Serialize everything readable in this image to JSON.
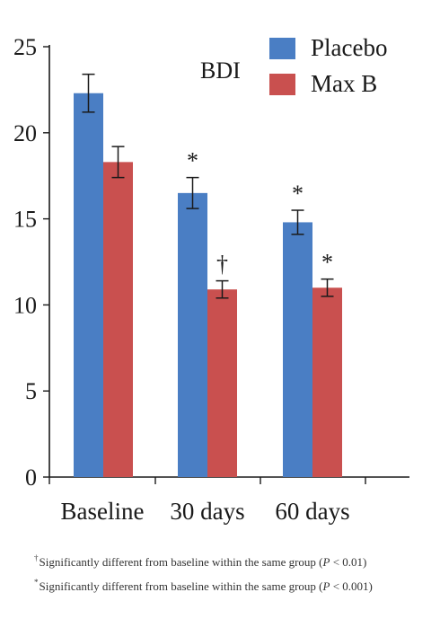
{
  "chart_data": {
    "type": "bar",
    "title": "BDI",
    "categories": [
      "Baseline",
      "30 days",
      "60 days"
    ],
    "series": [
      {
        "name": "Placebo",
        "color": "#4a7ec4",
        "values": [
          22.3,
          16.5,
          14.8
        ],
        "errors": [
          1.1,
          0.9,
          0.7
        ],
        "markers": [
          "",
          "*",
          "*"
        ]
      },
      {
        "name": "Max B",
        "color": "#c9504f",
        "values": [
          18.3,
          10.9,
          11.0
        ],
        "errors": [
          0.9,
          0.5,
          0.5
        ],
        "markers": [
          "",
          "†",
          "*"
        ]
      }
    ],
    "ylim": [
      0,
      25
    ],
    "yticks": [
      0,
      5,
      10,
      15,
      20,
      25
    ],
    "grid": false,
    "legend_position": "top-right",
    "xlabel": "",
    "ylabel": ""
  },
  "footnotes": [
    {
      "symbol": "†",
      "text_before": "Significantly different from baseline within the same group (",
      "p_symbol": "P",
      "text_after": " < 0.01)"
    },
    {
      "symbol": "*",
      "text_before": "Significantly different from baseline within the same group (",
      "p_symbol": "P",
      "text_after": " < 0.001)"
    }
  ]
}
